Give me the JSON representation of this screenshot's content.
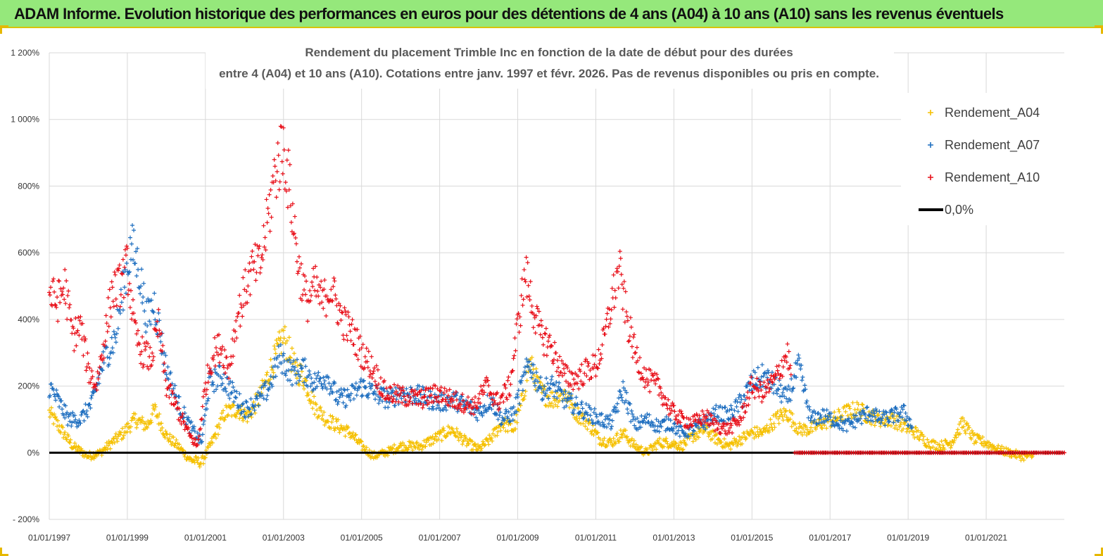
{
  "banner": {
    "title": "ADAM Informe. Evolution historique des performances en euros pour des détentions de 4 ans (A04) à 10 ans (A10) sans les revenus éventuels"
  },
  "colors": {
    "banner_bg": "#95e87b",
    "a04": "#f5c000",
    "a07": "#1f6fc0",
    "a10": "#e8101a",
    "zero_line": "#000000",
    "grid": "#d9d9d9"
  },
  "chart_data": {
    "type": "scatter",
    "title_lines": [
      "Rendement du placement Trimble Inc en fonction de la date de début pour des durées",
      "entre 4 (A04) et 10 ans (A10).  Cotations entre janv. 1997 et févr. 2026.  Pas de revenus disponibles ou pris en compte."
    ],
    "xlabel": "",
    "ylabel": "",
    "xlim": [
      1997.0,
      2023.0
    ],
    "ylim": [
      -200,
      1200
    ],
    "y_ticks": [
      -200,
      0,
      200,
      400,
      600,
      800,
      1000,
      1200
    ],
    "y_tick_labels": [
      "- 200%",
      "0%",
      "200%",
      "400%",
      "600%",
      "800%",
      "1 000%",
      "1 200%"
    ],
    "x_ticks": [
      1997,
      1999,
      2001,
      2003,
      2005,
      2007,
      2009,
      2011,
      2013,
      2015,
      2017,
      2019,
      2021
    ],
    "x_tick_labels": [
      "01/01/1997",
      "01/01/1999",
      "01/01/2001",
      "01/01/2003",
      "01/01/2005",
      "01/01/2007",
      "01/01/2009",
      "01/01/2011",
      "01/01/2013",
      "01/01/2015",
      "01/01/2017",
      "01/01/2019",
      "01/01/2021"
    ],
    "grid": true,
    "legend_position": "top-right",
    "series": [
      {
        "name": "Rendement_A04",
        "marker": "+",
        "x": [
          1997.0,
          1997.3,
          1997.6,
          1998.0,
          1998.3,
          1998.6,
          1998.9,
          1999.2,
          1999.5,
          1999.7,
          2000.0,
          2000.3,
          2000.6,
          2000.9,
          2001.2,
          2001.5,
          2001.8,
          2002.1,
          2002.4,
          2002.7,
          2003.0,
          2003.3,
          2003.5,
          2003.8,
          2004.1,
          2004.4,
          2004.7,
          2005.0,
          2005.3,
          2005.6,
          2006.0,
          2006.5,
          2007.0,
          2007.3,
          2007.7,
          2008.0,
          2008.3,
          2008.6,
          2008.9,
          2009.1,
          2009.3,
          2009.6,
          2009.9,
          2010.2,
          2010.5,
          2010.8,
          2011.1,
          2011.4,
          2011.7,
          2012.0,
          2012.3,
          2012.6,
          2012.9,
          2013.2,
          2013.5,
          2013.8,
          2014.1,
          2014.4,
          2014.7,
          2015.0,
          2015.3,
          2015.6,
          2015.9,
          2016.2,
          2016.5,
          2016.8,
          2017.1,
          2017.4,
          2017.7,
          2018.0,
          2018.3,
          2018.6,
          2018.9,
          2019.2,
          2019.5,
          2019.8,
          2020.1,
          2020.4,
          2020.7,
          2021.0,
          2021.3,
          2021.6,
          2021.9,
          2022.2
        ],
        "values": [
          120,
          70,
          20,
          -10,
          0,
          30,
          60,
          100,
          80,
          130,
          50,
          20,
          -20,
          -30,
          40,
          120,
          130,
          110,
          170,
          260,
          350,
          250,
          230,
          140,
          100,
          80,
          60,
          20,
          -10,
          0,
          20,
          20,
          50,
          70,
          30,
          10,
          40,
          90,
          70,
          150,
          270,
          180,
          160,
          180,
          120,
          90,
          40,
          30,
          60,
          20,
          0,
          30,
          30,
          20,
          50,
          70,
          40,
          20,
          40,
          60,
          60,
          100,
          120,
          70,
          70,
          90,
          100,
          120,
          130,
          110,
          100,
          100,
          80,
          60,
          30,
          20,
          30,
          90,
          40,
          30,
          10,
          0,
          -10,
          -10
        ]
      },
      {
        "name": "Rendement_A07",
        "marker": "+",
        "x": [
          1997.0,
          1997.2,
          1997.5,
          1997.8,
          1998.1,
          1998.4,
          1998.7,
          1998.9,
          1999.1,
          1999.3,
          1999.5,
          1999.7,
          2000.0,
          2000.3,
          2000.6,
          2000.9,
          2001.1,
          2001.4,
          2001.7,
          2002.0,
          2002.3,
          2002.6,
          2002.9,
          2003.2,
          2003.5,
          2003.8,
          2004.1,
          2004.4,
          2004.7,
          2005.0,
          2005.3,
          2005.7,
          2006.0,
          2006.5,
          2007.0,
          2007.3,
          2007.7,
          2008.0,
          2008.3,
          2008.6,
          2008.9,
          2009.1,
          2009.3,
          2009.6,
          2009.9,
          2010.2,
          2010.5,
          2010.8,
          2011.1,
          2011.4,
          2011.7,
          2012.0,
          2012.3,
          2012.6,
          2012.9,
          2013.2,
          2013.5,
          2013.8,
          2014.1,
          2014.4,
          2014.7,
          2015.0,
          2015.3,
          2015.6,
          2015.9,
          2016.2,
          2016.5,
          2016.8,
          2017.1,
          2017.4,
          2017.7,
          2018.0,
          2018.3,
          2018.6,
          2018.9,
          2019.1
        ],
        "values": [
          200,
          160,
          100,
          100,
          150,
          280,
          350,
          500,
          620,
          550,
          400,
          450,
          250,
          150,
          80,
          30,
          210,
          230,
          180,
          130,
          150,
          190,
          290,
          240,
          250,
          210,
          230,
          160,
          170,
          200,
          180,
          160,
          180,
          170,
          150,
          160,
          140,
          120,
          160,
          100,
          120,
          200,
          270,
          190,
          200,
          160,
          140,
          120,
          100,
          90,
          190,
          80,
          100,
          80,
          90,
          60,
          70,
          90,
          120,
          110,
          150,
          210,
          230,
          200,
          160,
          260,
          100,
          110,
          100,
          80,
          100,
          120,
          100,
          110,
          120,
          80
        ]
      },
      {
        "name": "Rendement_A10",
        "marker": "+",
        "x": [
          1997.0,
          1997.2,
          1997.4,
          1997.6,
          1997.8,
          1998.0,
          1998.2,
          1998.4,
          1998.6,
          1998.8,
          1999.0,
          1999.2,
          1999.4,
          1999.6,
          1999.8,
          2000.0,
          2000.2,
          2000.4,
          2000.6,
          2000.8,
          2001.0,
          2001.2,
          2001.4,
          2001.6,
          2001.8,
          2002.0,
          2002.2,
          2002.4,
          2002.6,
          2002.8,
          2003.0,
          2003.2,
          2003.4,
          2003.6,
          2003.8,
          2004.0,
          2004.2,
          2004.5,
          2004.8,
          2005.0,
          2005.3,
          2005.6,
          2006.0,
          2006.5,
          2007.0,
          2007.3,
          2007.6,
          2007.9,
          2008.2,
          2008.5,
          2008.8,
          2009.0,
          2009.2,
          2009.4,
          2009.6,
          2009.8,
          2010.0,
          2010.2,
          2010.5,
          2010.8,
          2011.0,
          2011.2,
          2011.4,
          2011.6,
          2011.8,
          2012.0,
          2012.3,
          2012.6,
          2012.9,
          2013.2,
          2013.5,
          2013.8,
          2014.1,
          2014.4,
          2014.7,
          2015.0,
          2015.3,
          2015.6,
          2015.9,
          2016.0
        ],
        "values": [
          480,
          450,
          500,
          350,
          380,
          250,
          200,
          330,
          480,
          500,
          560,
          350,
          300,
          280,
          380,
          200,
          150,
          100,
          50,
          20,
          200,
          300,
          320,
          250,
          400,
          480,
          550,
          560,
          700,
          850,
          920,
          750,
          550,
          450,
          500,
          450,
          500,
          400,
          350,
          300,
          250,
          180,
          170,
          160,
          180,
          160,
          150,
          140,
          200,
          150,
          200,
          380,
          540,
          430,
          350,
          330,
          280,
          230,
          220,
          250,
          260,
          330,
          450,
          550,
          400,
          300,
          220,
          200,
          130,
          100,
          90,
          110,
          80,
          70,
          100,
          200,
          180,
          220,
          300,
          240
        ]
      },
      {
        "name": "Rendement_A10",
        "marker": "+",
        "legend": false,
        "x_range": [
          2016.1,
          2023.0
        ],
        "constant_value": 0
      },
      {
        "name": "0,0%",
        "type": "line",
        "x_range": [
          1997.0,
          2023.0
        ],
        "constant_value": 0
      }
    ]
  }
}
